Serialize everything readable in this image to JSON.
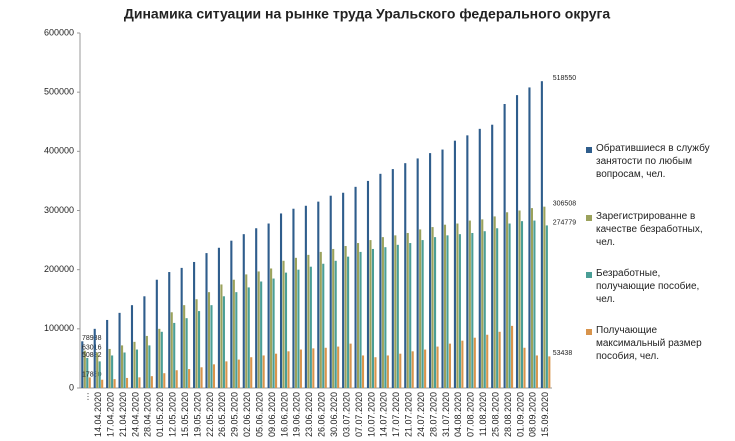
{
  "chart_data": {
    "type": "bar",
    "title": "Динамика ситуации  на рынке труда Уральского федерального округа",
    "categories": [
      "…",
      "14.04.2020",
      "17.04.2020",
      "21.04.2020",
      "24.04.2020",
      "28.04.2020",
      "01.05.2020",
      "12.05.2020",
      "15.05.2020",
      "19.05.2020",
      "22.05.2020",
      "26.05.2020",
      "29.05.2020",
      "02.06.2020",
      "05.06.2020",
      "09.06.2020",
      "16.06.2020",
      "19.06.2020",
      "23.06.2020",
      "26.06.2020",
      "30.06.2020",
      "03.07.2020",
      "07.07.2020",
      "10.07.2020",
      "14.07.2020",
      "17.07.2020",
      "21.07.2020",
      "24.07.2020",
      "28.07.2020",
      "31.07.2020",
      "04.08.2020",
      "07.08.2020",
      "11.08.2020",
      "25.08.2020",
      "28.08.2020",
      "01.09.2020",
      "08.09.2020",
      "15.09.2020"
    ],
    "series": [
      {
        "name": "Обратившиеся в службу занятости по любым вопросам, чел.",
        "color": "#2f5d8c",
        "values": [
          78938,
          100000,
          115000,
          127000,
          140000,
          155000,
          183000,
          196000,
          203000,
          213000,
          228000,
          237000,
          249000,
          260000,
          270000,
          278000,
          295000,
          303000,
          308000,
          315000,
          325000,
          330000,
          340000,
          350000,
          362000,
          370000,
          380000,
          388000,
          397000,
          403000,
          418000,
          427000,
          438000,
          445000,
          480000,
          495000,
          508000,
          518550
        ]
      },
      {
        "name": "Зарегистрированне в качестве безработных, чел.",
        "color": "#9ba25c",
        "values": [
          63016,
          60000,
          66000,
          72000,
          78000,
          88000,
          100000,
          128000,
          140000,
          150000,
          162000,
          175000,
          183000,
          192000,
          197000,
          202000,
          215000,
          220000,
          225000,
          230000,
          235000,
          240000,
          245000,
          250000,
          255000,
          258000,
          262000,
          268000,
          272000,
          276000,
          278000,
          283000,
          285000,
          290000,
          297000,
          300000,
          304000,
          306508
        ]
      },
      {
        "name": "Безработные, получающие пособие, чел.",
        "color": "#4a9e96",
        "values": [
          50832,
          45000,
          55000,
          60000,
          65000,
          72000,
          95000,
          110000,
          118000,
          130000,
          140000,
          155000,
          162000,
          170000,
          180000,
          185000,
          195000,
          200000,
          205000,
          210000,
          215000,
          222000,
          230000,
          235000,
          238000,
          242000,
          245000,
          250000,
          255000,
          258000,
          260000,
          262000,
          265000,
          270000,
          278000,
          282000,
          283000,
          274779
        ]
      },
      {
        "name": "Получающие максимальный размер пособия, чел.",
        "color": "#d8944c",
        "values": [
          17860,
          14000,
          15000,
          17000,
          18000,
          20000,
          25000,
          30000,
          32000,
          35000,
          40000,
          45000,
          48000,
          52000,
          55000,
          58000,
          62000,
          65000,
          67000,
          68000,
          70000,
          75000,
          55000,
          52000,
          55000,
          58000,
          62000,
          65000,
          70000,
          75000,
          80000,
          85000,
          90000,
          95000,
          105000,
          68000,
          55000,
          53438
        ]
      }
    ],
    "data_labels": "first_last",
    "ylim": [
      0,
      600000
    ],
    "yticks": [
      0,
      100000,
      200000,
      300000,
      400000,
      500000,
      600000
    ],
    "legend": "right"
  }
}
